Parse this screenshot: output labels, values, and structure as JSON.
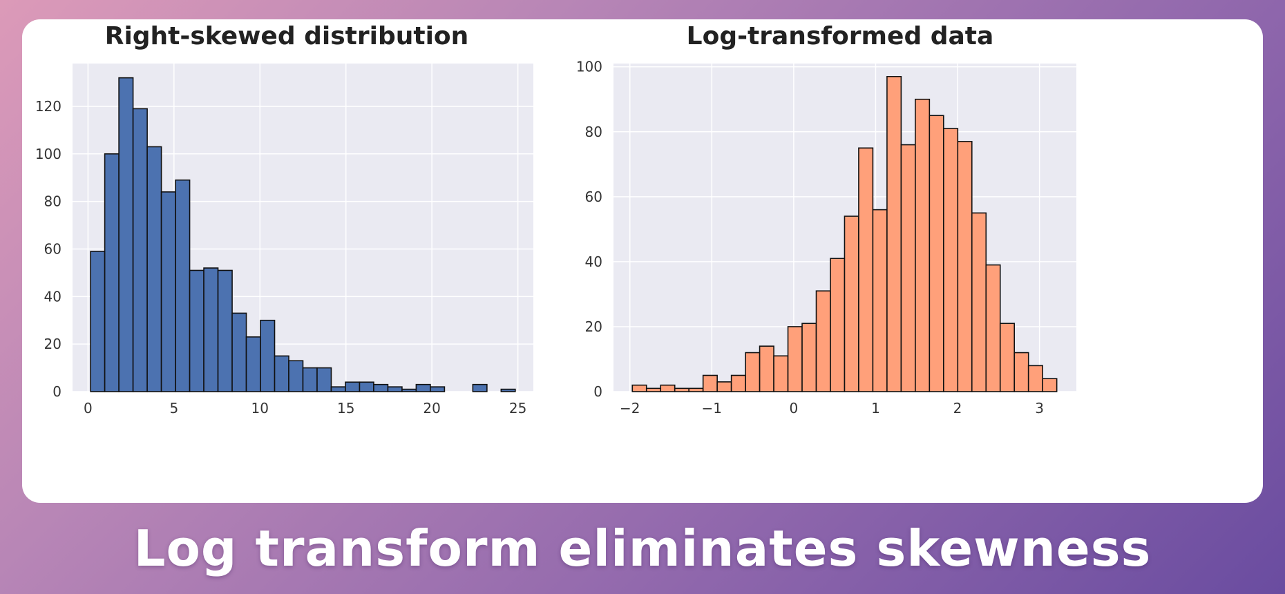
{
  "caption": "Log transform eliminates skewness",
  "colors": {
    "plot_bg": "#eaeaf2",
    "grid": "#ffffff",
    "edge": "#111111",
    "left_bars": "#4c72b0",
    "right_bars": "#ffa07a"
  },
  "chart_data": [
    {
      "type": "bar",
      "title": "Right-skewed distribution",
      "xlim": [
        -0.9,
        25.9
      ],
      "ylim": [
        0,
        138
      ],
      "xticks": [
        0,
        5,
        10,
        15,
        20,
        25
      ],
      "yticks": [
        0,
        20,
        40,
        60,
        80,
        100,
        120
      ],
      "bin_start": 0.15,
      "bin_width": 0.8233,
      "values": [
        59,
        100,
        132,
        119,
        103,
        84,
        89,
        51,
        52,
        51,
        33,
        23,
        30,
        15,
        13,
        10,
        10,
        2,
        4,
        4,
        3,
        2,
        1,
        3,
        2,
        0,
        0,
        3,
        0,
        1
      ],
      "grid": true,
      "legend": "none"
    },
    {
      "type": "bar",
      "title": "Log-transformed data",
      "xlim": [
        -2.2,
        3.45
      ],
      "ylim": [
        0,
        101
      ],
      "xticks": [
        -2,
        -1,
        0,
        1,
        2,
        3
      ],
      "yticks": [
        0,
        20,
        40,
        60,
        80,
        100
      ],
      "bin_start": -1.97,
      "bin_width": 0.1727,
      "values": [
        2,
        1,
        2,
        1,
        1,
        5,
        3,
        5,
        12,
        14,
        11,
        20,
        21,
        31,
        41,
        54,
        75,
        56,
        97,
        76,
        90,
        85,
        81,
        77,
        55,
        39,
        21,
        12,
        8,
        4
      ],
      "grid": true,
      "legend": "none"
    }
  ]
}
